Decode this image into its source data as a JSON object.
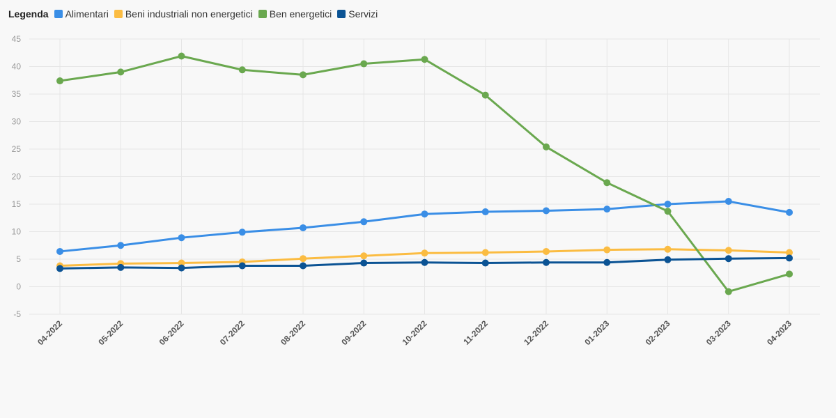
{
  "legend": {
    "title": "Legenda"
  },
  "colors": {
    "grid": "#e6e6e6",
    "background": "#f8f8f8"
  },
  "chart_data": {
    "type": "line",
    "title": "",
    "xlabel": "",
    "ylabel": "",
    "ylim": [
      -5,
      45
    ],
    "yticks": [
      -5,
      0,
      5,
      10,
      15,
      20,
      25,
      30,
      35,
      40,
      45
    ],
    "grid": true,
    "legend_position": "top-left",
    "categories": [
      "04-2022",
      "05-2022",
      "06-2022",
      "07-2022",
      "08-2022",
      "09-2022",
      "10-2022",
      "11-2022",
      "12-2022",
      "01-2023",
      "02-2023",
      "03-2023",
      "04-2023"
    ],
    "series": [
      {
        "name": "Alimentari",
        "color": "#3a8ee6",
        "values": [
          6.4,
          7.5,
          8.9,
          9.9,
          10.7,
          11.8,
          13.2,
          13.6,
          13.8,
          14.1,
          15.0,
          15.5,
          13.5
        ]
      },
      {
        "name": "Beni industriali non energetici",
        "color": "#fbbc42",
        "values": [
          3.8,
          4.2,
          4.3,
          4.5,
          5.1,
          5.6,
          6.1,
          6.2,
          6.4,
          6.7,
          6.8,
          6.6,
          6.2
        ]
      },
      {
        "name": "Ben energetici",
        "color": "#6aa84f",
        "values": [
          37.4,
          39.0,
          41.9,
          39.4,
          38.5,
          40.5,
          41.3,
          34.8,
          25.4,
          18.9,
          13.7,
          -0.9,
          2.3
        ]
      },
      {
        "name": "Servizi",
        "color": "#0b5394",
        "values": [
          3.3,
          3.5,
          3.4,
          3.8,
          3.8,
          4.3,
          4.4,
          4.3,
          4.4,
          4.4,
          4.9,
          5.1,
          5.2
        ]
      }
    ]
  }
}
